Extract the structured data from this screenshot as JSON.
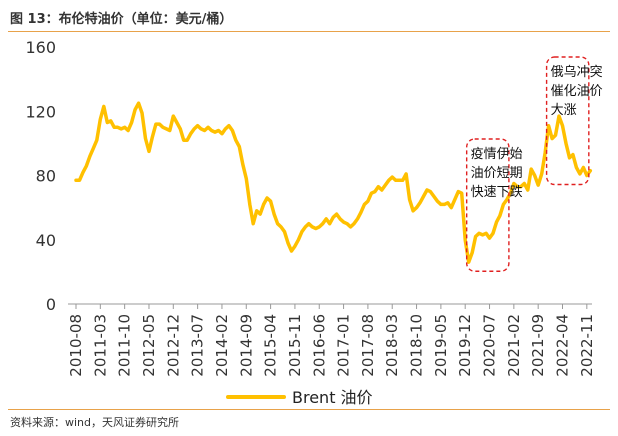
{
  "header": {
    "title": "图 13：布伦特油价（单位：美元/桶）"
  },
  "footer": {
    "source": "资料来源：wind，天风证券研究所"
  },
  "colors": {
    "series": "#FFC000",
    "annotation_box": "#E02020",
    "rule": "#E8A24A"
  },
  "chart_data": {
    "type": "line",
    "title": "图 13：布伦特油价（单位：美元/桶）",
    "xlabel": "",
    "ylabel": "",
    "ylim": [
      0,
      160
    ],
    "yticks": [
      0,
      40,
      80,
      120,
      160
    ],
    "xticks": [
      "2010-08",
      "2011-03",
      "2011-10",
      "2012-05",
      "2012-12",
      "2013-07",
      "2014-02",
      "2014-09",
      "2015-04",
      "2015-11",
      "2016-06",
      "2017-01",
      "2017-08",
      "2018-03",
      "2018-10",
      "2019-05",
      "2019-12",
      "2020-07",
      "2021-02",
      "2021-09",
      "2022-04",
      "2022-11"
    ],
    "grid": false,
    "legend": {
      "position": "bottom",
      "entries": [
        "Brent 油价"
      ]
    },
    "series": [
      {
        "name": "Brent 油价",
        "x_start": "2010-08",
        "frequency": "monthly",
        "values": [
          77,
          77,
          82,
          86,
          92,
          97,
          102,
          115,
          123,
          113,
          114,
          110,
          110,
          109,
          110,
          108,
          113,
          121,
          125,
          119,
          103,
          95,
          104,
          112,
          112,
          110,
          109,
          108,
          117,
          113,
          109,
          102,
          102,
          106,
          109,
          111,
          109,
          108,
          110,
          108,
          107,
          108,
          106,
          109,
          111,
          108,
          102,
          98,
          87,
          78,
          62,
          50,
          58,
          56,
          62,
          66,
          64,
          56,
          50,
          48,
          45,
          38,
          33,
          36,
          40,
          45,
          48,
          50,
          48,
          47,
          48,
          50,
          53,
          50,
          54,
          56,
          53,
          51,
          50,
          48,
          50,
          53,
          57,
          62,
          64,
          69,
          70,
          73,
          71,
          74,
          77,
          79,
          77,
          77,
          77,
          81,
          65,
          58,
          60,
          63,
          67,
          71,
          70,
          67,
          64,
          62,
          62,
          63,
          60,
          65,
          70,
          69,
          40,
          26,
          32,
          42,
          44,
          43,
          44,
          41,
          44,
          51,
          55,
          62,
          65,
          69,
          75,
          73,
          73,
          75,
          71,
          84,
          80,
          74,
          81,
          94,
          111,
          103,
          105,
          117,
          111,
          100,
          91,
          93,
          85,
          81,
          85,
          80,
          83
        ]
      }
    ],
    "annotations": [
      {
        "text": [
          "疫情伊始",
          "油价短期",
          "快速下跌"
        ],
        "from": "2020-01",
        "to": "2020-12"
      },
      {
        "text": [
          "俄乌冲突",
          "催化油价",
          "大涨"
        ],
        "from": "2021-12",
        "to": "2022-11"
      }
    ]
  }
}
